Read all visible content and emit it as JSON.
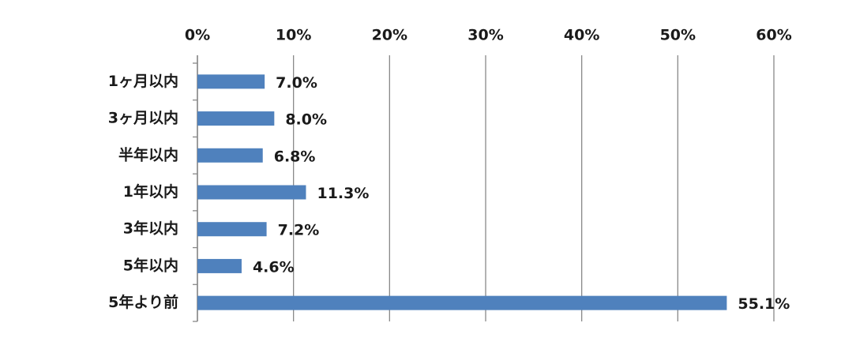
{
  "chart_data": {
    "type": "bar",
    "orientation": "horizontal",
    "categories": [
      "1ヶ月以内",
      "3ヶ月以内",
      "半年以内",
      "1年以内",
      "3年以内",
      "5年以内",
      "5年より前"
    ],
    "values": [
      7.0,
      8.0,
      6.8,
      11.3,
      7.2,
      4.6,
      55.1
    ],
    "value_labels": [
      "7.0%",
      "8.0%",
      "6.8%",
      "11.3%",
      "7.2%",
      "4.6%",
      "55.1%"
    ],
    "color": "#4f81bd",
    "xlim": [
      0,
      60
    ],
    "xticks": [
      {
        "value": 0,
        "label": "0%"
      },
      {
        "value": 10,
        "label": "10%"
      },
      {
        "value": 20,
        "label": "20%"
      },
      {
        "value": 30,
        "label": "30%"
      },
      {
        "value": 40,
        "label": "40%"
      },
      {
        "value": 50,
        "label": "50%"
      },
      {
        "value": 60,
        "label": "60%"
      }
    ],
    "grid": true
  }
}
